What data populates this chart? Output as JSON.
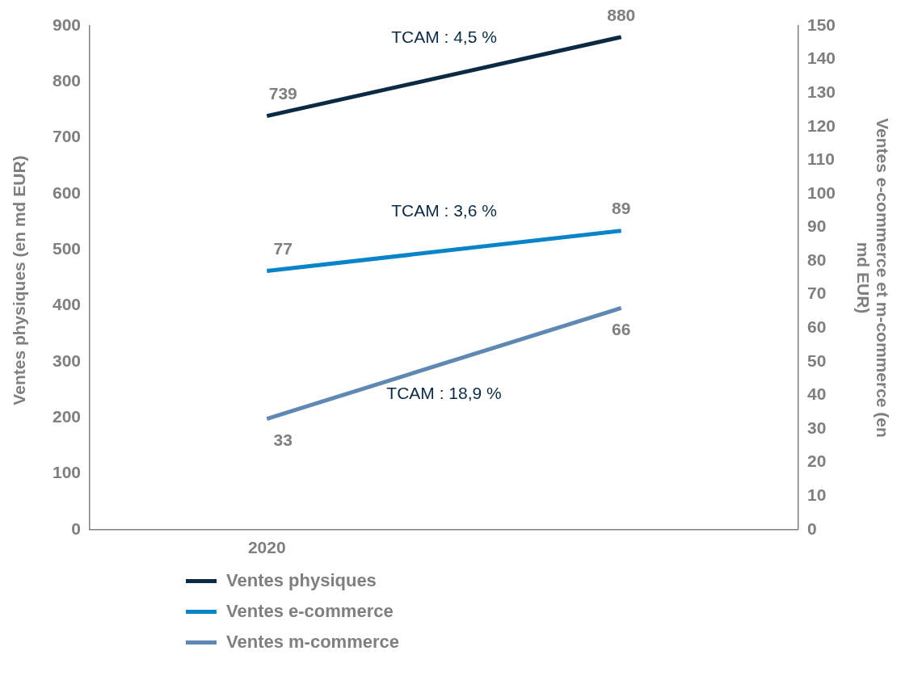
{
  "chart_data": {
    "type": "line",
    "categories": [
      "2020",
      null
    ],
    "series": [
      {
        "name": "Ventes physiques",
        "color": "#0c2a44",
        "values": [
          739,
          880
        ]
      },
      {
        "name": "Ventes e-commerce",
        "color": "#0a84c8",
        "values": [
          77,
          89
        ],
        "axis": "y2"
      },
      {
        "name": "Ventes m-commerce",
        "color": "#5f88b3",
        "values": [
          33,
          66
        ],
        "axis": "y2"
      }
    ],
    "ylabel": "Ventes physiques (en md EUR)",
    "y2label": "Ventes e-commerce et m-commerce (en md EUR)",
    "ylim": [
      0,
      900
    ],
    "yticks": [
      0,
      100,
      200,
      300,
      400,
      500,
      600,
      700,
      800,
      900
    ],
    "y2lim": [
      0,
      150
    ],
    "y2ticks": [
      0,
      10,
      20,
      30,
      40,
      50,
      60,
      70,
      80,
      90,
      100,
      110,
      120,
      130,
      140,
      150
    ],
    "annotations": [
      "TCAM : 4,5 %",
      "TCAM : 3,6 %",
      "TCAM : 18,9 %"
    ],
    "data_labels": true,
    "grid": false,
    "legend": "bottom",
    "marker": "none",
    "line_style": "solid"
  }
}
